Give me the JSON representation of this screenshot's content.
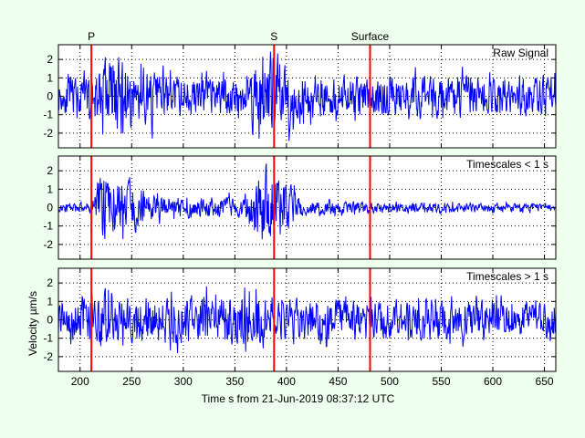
{
  "chart_data": {
    "type": "line",
    "xlabel": "Time s from 21-Jun-2019 08:37:12 UTC",
    "ylabel": "Velocity µm/s",
    "xlim": [
      179,
      661
    ],
    "ylim": [
      -2.8,
      2.8
    ],
    "xticks": [
      200,
      250,
      300,
      350,
      400,
      450,
      500,
      550,
      600,
      650
    ],
    "yticks": [
      2,
      1,
      0,
      -1,
      -2
    ],
    "grid": true,
    "phase_markers": [
      {
        "label": "P",
        "time": 211
      },
      {
        "label": "S",
        "time": 388
      },
      {
        "label": "Surface",
        "time": 481
      }
    ],
    "marker_color": "#ff0000",
    "trace_color": "#0000ff",
    "panels": [
      {
        "title": "Raw Signal",
        "noise_amp": 0.45,
        "seed": 11,
        "envelope": [
          [
            179,
            0.5
          ],
          [
            211,
            0.6
          ],
          [
            220,
            1.3
          ],
          [
            250,
            1.0
          ],
          [
            280,
            0.6
          ],
          [
            360,
            0.6
          ],
          [
            375,
            1.6
          ],
          [
            395,
            1.1
          ],
          [
            420,
            0.6
          ],
          [
            661,
            0.55
          ]
        ]
      },
      {
        "title": "Timescales < 1 s",
        "noise_amp": 0.35,
        "seed": 23,
        "envelope": [
          [
            179,
            0.12
          ],
          [
            211,
            0.15
          ],
          [
            218,
            1.0
          ],
          [
            240,
            0.8
          ],
          [
            280,
            0.3
          ],
          [
            360,
            0.3
          ],
          [
            375,
            1.3
          ],
          [
            395,
            0.9
          ],
          [
            420,
            0.2
          ],
          [
            661,
            0.1
          ]
        ]
      },
      {
        "title": "Timescales > 1 s",
        "noise_amp": 0.4,
        "seed": 37,
        "envelope": [
          [
            179,
            0.5
          ],
          [
            225,
            0.9
          ],
          [
            240,
            0.6
          ],
          [
            380,
            0.8
          ],
          [
            395,
            0.6
          ],
          [
            661,
            0.5
          ]
        ]
      }
    ]
  }
}
